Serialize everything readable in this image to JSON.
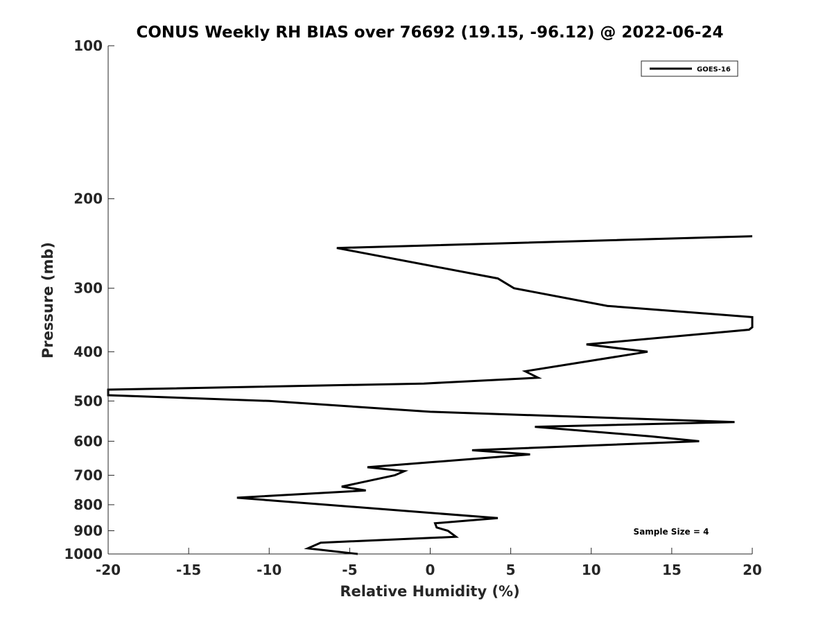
{
  "chart_data": {
    "type": "line",
    "title": "CONUS Weekly RH BIAS over 76692 (19.15, -96.12) @ 2022-06-24",
    "xlabel": "Relative Humidity (%)",
    "ylabel": "Pressure (mb)",
    "xlim": [
      -20,
      20
    ],
    "ylim": [
      1000,
      100
    ],
    "yscale": "log",
    "grid": false,
    "legend_position": "top-right",
    "x_ticks": [
      -20,
      -15,
      -10,
      -5,
      0,
      5,
      10,
      15,
      20
    ],
    "x_tick_labels": [
      "-20",
      "-15",
      "-10",
      "-5",
      "0",
      "5",
      "10",
      "15",
      "20"
    ],
    "y_ticks": [
      100,
      200,
      300,
      400,
      500,
      600,
      700,
      800,
      900,
      1000
    ],
    "y_tick_labels": [
      "100",
      "200",
      "300",
      "400",
      "500",
      "600",
      "700",
      "800",
      "900",
      "1000"
    ],
    "series": [
      {
        "name": "GOES-16",
        "color": "#000000",
        "points": [
          [
            -4.5,
            1000
          ],
          [
            -7.6,
            975
          ],
          [
            -6.8,
            950
          ],
          [
            1.6,
            925
          ],
          [
            1.1,
            900
          ],
          [
            0.4,
            887
          ],
          [
            0.3,
            870
          ],
          [
            4.2,
            850
          ],
          [
            -12.0,
            775
          ],
          [
            -4.0,
            750
          ],
          [
            -5.5,
            737
          ],
          [
            -2.2,
            700
          ],
          [
            -1.6,
            687
          ],
          [
            -3.9,
            675
          ],
          [
            6.2,
            637
          ],
          [
            2.6,
            625
          ],
          [
            16.7,
            600
          ],
          [
            13.7,
            587
          ],
          [
            6.5,
            562
          ],
          [
            18.9,
            550
          ],
          [
            0.0,
            525
          ],
          [
            -10.0,
            500
          ],
          [
            -20.0,
            487
          ],
          [
            -20.0,
            475
          ],
          [
            -0.4,
            462
          ],
          [
            6.7,
            450
          ],
          [
            5.9,
            437
          ],
          [
            13.5,
            400
          ],
          [
            9.7,
            387
          ],
          [
            19.8,
            362
          ],
          [
            20.0,
            358
          ],
          [
            20.0,
            342
          ],
          [
            11.0,
            325
          ],
          [
            5.2,
            300
          ],
          [
            4.2,
            287
          ],
          [
            -5.8,
            250
          ],
          [
            20.0,
            237
          ]
        ]
      }
    ],
    "annotation": "Sample Size = 4"
  }
}
